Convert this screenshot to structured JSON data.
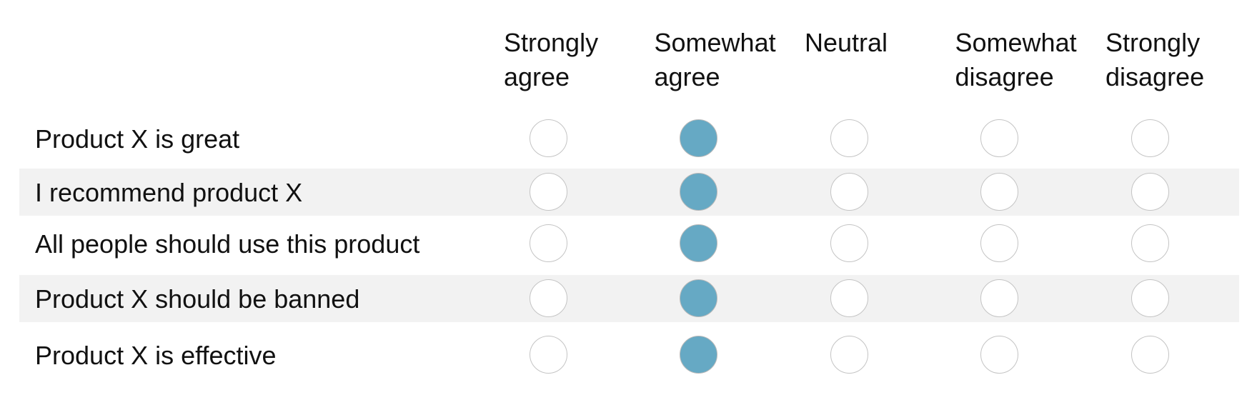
{
  "columns": [
    "Strongly agree",
    "Somewhat agree",
    "Neutral",
    "Somewhat disagree",
    "Strongly disagree"
  ],
  "rows": [
    {
      "label": "Product X is great",
      "selected": 1
    },
    {
      "label": "I recommend product X",
      "selected": 1
    },
    {
      "label": "All people should use this product",
      "selected": 1
    },
    {
      "label": "Product X should be banned",
      "selected": 1
    },
    {
      "label": "Product X is effective",
      "selected": 1
    }
  ]
}
